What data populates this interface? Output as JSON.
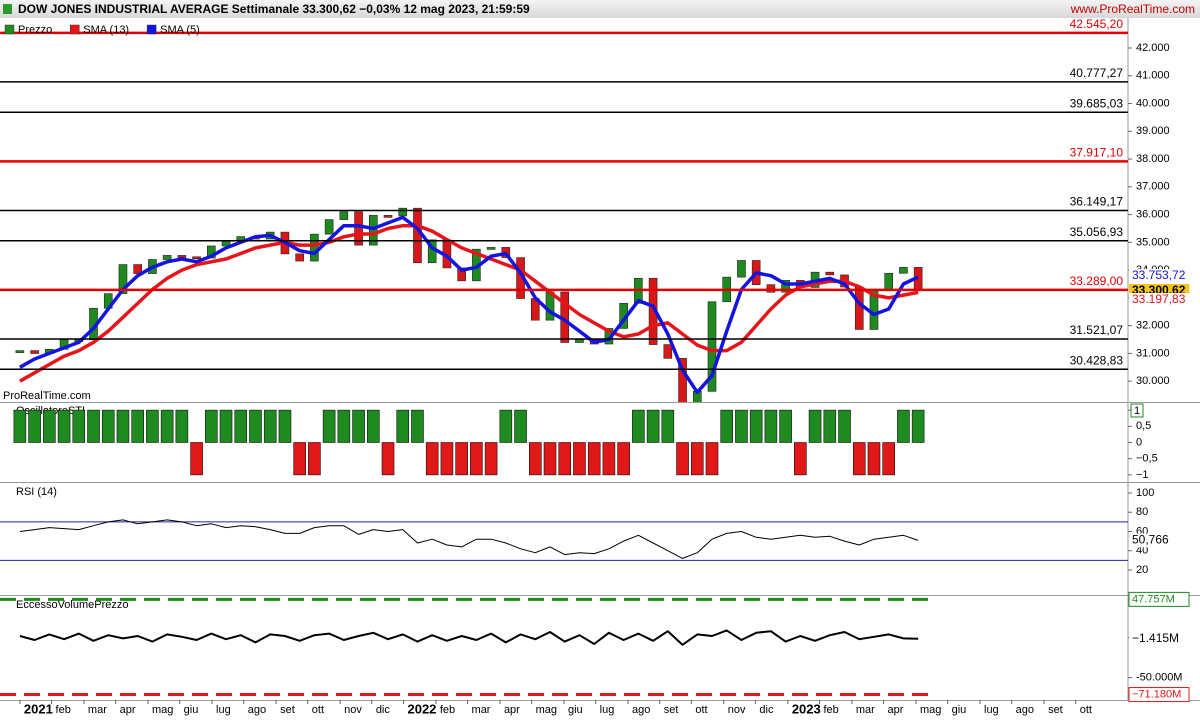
{
  "header": {
    "title": "DOW JONES INDUSTRIAL AVERAGE Settimanale 33.300,62 −0,03% 12 mag 2023, 21:59:59",
    "brand": "www.ProRealTime.com",
    "watermark": "ProRealTime.com"
  },
  "chart_data": [
    {
      "type": "candlestick",
      "x": [
        0,
        2,
        4,
        6,
        8,
        10,
        12,
        14,
        16,
        18,
        20,
        22,
        24,
        26,
        28,
        30,
        32,
        34,
        36,
        38,
        40,
        42,
        44,
        46,
        48,
        50,
        52,
        54,
        56,
        58,
        60,
        62,
        64,
        66,
        68,
        70,
        72,
        74,
        76,
        78,
        80,
        82,
        84,
        86,
        88,
        90,
        92,
        94,
        96,
        98,
        100,
        102,
        104,
        106,
        108,
        110,
        112,
        114,
        116,
        118,
        120,
        122
      ],
      "xlim": [
        -2.7,
        150.5
      ],
      "xticks": [
        {
          "value": 0,
          "label": "2021"
        },
        {
          "value": 4.3,
          "label": "feb"
        },
        {
          "value": 8.7,
          "label": "mar"
        },
        {
          "value": 13.0,
          "label": "apr"
        },
        {
          "value": 17.4,
          "label": "mag"
        },
        {
          "value": 21.7,
          "label": "giu"
        },
        {
          "value": 26.1,
          "label": "lug"
        },
        {
          "value": 30.4,
          "label": "ago"
        },
        {
          "value": 34.8,
          "label": "set"
        },
        {
          "value": 39.1,
          "label": "ott"
        },
        {
          "value": 43.5,
          "label": "nov"
        },
        {
          "value": 47.8,
          "label": "dic"
        },
        {
          "value": 52.1,
          "label": "2022"
        },
        {
          "value": 56.5,
          "label": "feb"
        },
        {
          "value": 60.8,
          "label": "mar"
        },
        {
          "value": 65.2,
          "label": "apr"
        },
        {
          "value": 69.5,
          "label": "mag"
        },
        {
          "value": 73.9,
          "label": "giu"
        },
        {
          "value": 78.2,
          "label": "lug"
        },
        {
          "value": 82.6,
          "label": "ago"
        },
        {
          "value": 86.9,
          "label": "set"
        },
        {
          "value": 91.2,
          "label": "ott"
        },
        {
          "value": 95.6,
          "label": "nov"
        },
        {
          "value": 99.9,
          "label": "dic"
        },
        {
          "value": 104.3,
          "label": "2023"
        },
        {
          "value": 108.6,
          "label": "feb"
        },
        {
          "value": 113.0,
          "label": "mar"
        },
        {
          "value": 117.3,
          "label": "apr"
        },
        {
          "value": 121.7,
          "label": "mag"
        },
        {
          "value": 126.0,
          "label": "giu"
        },
        {
          "value": 130.4,
          "label": "lug"
        },
        {
          "value": 134.7,
          "label": "ago"
        },
        {
          "value": 139.1,
          "label": "set"
        },
        {
          "value": 143.4,
          "label": "ott"
        }
      ],
      "ylim": [
        29250,
        43080
      ],
      "yticks": [
        {
          "value": 30000,
          "label": "30.000"
        },
        {
          "value": 31000,
          "label": "31.000"
        },
        {
          "value": 32000,
          "label": "32.000"
        },
        {
          "value": 33000,
          "label": "33.000"
        },
        {
          "value": 34000,
          "label": "34.000"
        },
        {
          "value": 35000,
          "label": "35.000"
        },
        {
          "value": 36000,
          "label": "36.000"
        },
        {
          "value": 37000,
          "label": "37.000"
        },
        {
          "value": 38000,
          "label": "38.000"
        },
        {
          "value": 39000,
          "label": "39.000"
        },
        {
          "value": 40000,
          "label": "40.000"
        },
        {
          "value": 41000,
          "label": "41.000"
        },
        {
          "value": 42000,
          "label": "42.000"
        }
      ],
      "levels": [
        {
          "value": 42545.2,
          "label": "42.545,20",
          "color": "#e00000"
        },
        {
          "value": 40777.27,
          "label": "40.777,27",
          "color": "#000000"
        },
        {
          "value": 39685.03,
          "label": "39.685,03",
          "color": "#000000"
        },
        {
          "value": 37917.1,
          "label": "37.917,10",
          "color": "#e00000"
        },
        {
          "value": 36149.17,
          "label": "36.149,17",
          "color": "#000000"
        },
        {
          "value": 35056.93,
          "label": "35.056,93",
          "color": "#000000"
        },
        {
          "value": 33289.0,
          "label": "33.289,00",
          "color": "#e00000"
        },
        {
          "value": 31521.07,
          "label": "31.521,07",
          "color": "#000000"
        },
        {
          "value": 30428.83,
          "label": "30.428,83",
          "color": "#000000"
        }
      ],
      "series": [
        {
          "name": "Prezzo",
          "color": "#1f8a1f",
          "down_color": "#d81818",
          "last_label": "33.300,62",
          "values": [
            31100,
            30997,
            31148,
            31494,
            31496,
            32628,
            33153,
            34200,
            33875,
            34382,
            34529,
            34480,
            34433,
            34870,
            35061,
            35208,
            35120,
            35369,
            34584,
            34326,
            35295,
            35820,
            36100,
            34899,
            35971,
            35950,
            36231,
            34265,
            35089,
            34079,
            33614,
            34754,
            34818,
            34451,
            32977,
            32197,
            33213,
            31393,
            31501,
            31338,
            31899,
            32803,
            33706,
            31318,
            30822,
            28726,
            29634,
            32861,
            33747,
            34347,
            33476,
            33203,
            33630,
            33375,
            33926,
            33827,
            33391,
            31862,
            33274,
            33886,
            34098,
            33300.62
          ]
        },
        {
          "name": "SMA (13)",
          "color": "#e8141a",
          "last_label": "33.197,83",
          "values": [
            30000,
            30300,
            30600,
            30900,
            31100,
            31400,
            31800,
            32300,
            32800,
            33300,
            33700,
            34000,
            34200,
            34300,
            34400,
            34600,
            34800,
            34900,
            35000,
            34900,
            34900,
            35000,
            35200,
            35300,
            35300,
            35500,
            35600,
            35600,
            35400,
            35100,
            34800,
            34600,
            34400,
            34200,
            34000,
            33600,
            33200,
            32800,
            32400,
            32100,
            31800,
            31600,
            31700,
            32000,
            32100,
            31700,
            31300,
            31100,
            31100,
            31400,
            32000,
            32600,
            33100,
            33400,
            33500,
            33600,
            33600,
            33400,
            33100,
            33000,
            33100,
            33197.83
          ]
        },
        {
          "name": "SMA (5)",
          "color": "#1414e0",
          "last_label": "33.753,72",
          "values": [
            30500,
            30800,
            31000,
            31200,
            31400,
            31900,
            32600,
            33300,
            33800,
            34100,
            34300,
            34400,
            34300,
            34500,
            34800,
            35000,
            35200,
            35250,
            35000,
            34700,
            34600,
            35100,
            35600,
            35600,
            35500,
            35700,
            35900,
            35500,
            34800,
            34500,
            34000,
            34100,
            34500,
            34600,
            33900,
            33000,
            32500,
            32200,
            31800,
            31400,
            31500,
            32200,
            32900,
            32700,
            31700,
            30400,
            29600,
            30200,
            31800,
            33300,
            33900,
            33800,
            33500,
            33500,
            33600,
            33700,
            33500,
            32800,
            32400,
            32600,
            33500,
            33753.72
          ]
        }
      ]
    },
    {
      "type": "bar",
      "title": "OscillatoreSTI",
      "ylim": [
        -1.22,
        1.22
      ],
      "yticks": [
        1,
        {
          "value": 0.5,
          "label": "0,5"
        },
        0,
        {
          "value": -0.5,
          "label": "−0,5"
        },
        {
          "value": -1,
          "label": "−1"
        }
      ],
      "last_label": "1",
      "color": "#1f8a1f",
      "down_color": "#e01818",
      "values": [
        1,
        1,
        1,
        1,
        1,
        1,
        1,
        1,
        1,
        1,
        1,
        1,
        -1,
        1,
        1,
        1,
        1,
        1,
        1,
        -1,
        -1,
        1,
        1,
        1,
        1,
        -1,
        1,
        1,
        -1,
        -1,
        -1,
        -1,
        -1,
        1,
        1,
        -1,
        -1,
        -1,
        -1,
        -1,
        -1,
        -1,
        1,
        1,
        1,
        -1,
        -1,
        -1,
        1,
        1,
        1,
        1,
        1,
        -1,
        1,
        1,
        1,
        -1,
        -1,
        -1,
        1,
        1
      ]
    },
    {
      "type": "line",
      "title": "RSI (14)",
      "ylim": [
        -6,
        110.4
      ],
      "yticks": [
        100,
        80,
        60,
        40,
        20
      ],
      "levels": [
        70,
        30
      ],
      "level_color": "#2020a0",
      "color": "#000000",
      "last_label": "50,766",
      "values": [
        60,
        62,
        64,
        63,
        62,
        66,
        70,
        72,
        68,
        70,
        72,
        70,
        66,
        68,
        64,
        66,
        65,
        62,
        58,
        58,
        64,
        66,
        66,
        57,
        62,
        60,
        62,
        48,
        52,
        46,
        44,
        52,
        52,
        48,
        42,
        38,
        44,
        36,
        38,
        37,
        42,
        50,
        56,
        48,
        40,
        32,
        38,
        52,
        58,
        60,
        54,
        52,
        54,
        56,
        54,
        55,
        50,
        46,
        52,
        54,
        56,
        50.766
      ]
    },
    {
      "type": "line",
      "title": "EccessoVolumePrezzo",
      "ylim": [
        -78,
        52
      ],
      "yticks": [
        0,
        {
          "value": -50,
          "label": "-50.000M"
        }
      ],
      "levels": [
        {
          "value": 47.757,
          "label": "47.757M",
          "color": "#1f8a1f"
        },
        {
          "value": -71.18,
          "label": "−71.180M",
          "color": "#e01818"
        }
      ],
      "color": "#000000",
      "last_label": "−1.415M",
      "values": [
        2,
        -3,
        4,
        -2,
        5,
        -4,
        3,
        -1,
        2,
        -5,
        4,
        1,
        -3,
        5,
        -2,
        3,
        -6,
        4,
        2,
        -4,
        3,
        5,
        -3,
        2,
        6,
        -2,
        4,
        -5,
        3,
        -4,
        2,
        -3,
        5,
        -6,
        4,
        -2,
        7,
        -5,
        3,
        -8,
        6,
        -3,
        5,
        -4,
        8,
        -9,
        4,
        2,
        9,
        -3,
        6,
        8,
        -5,
        2,
        -4,
        3,
        7,
        -2,
        1,
        4,
        -1,
        -1.415
      ]
    }
  ]
}
